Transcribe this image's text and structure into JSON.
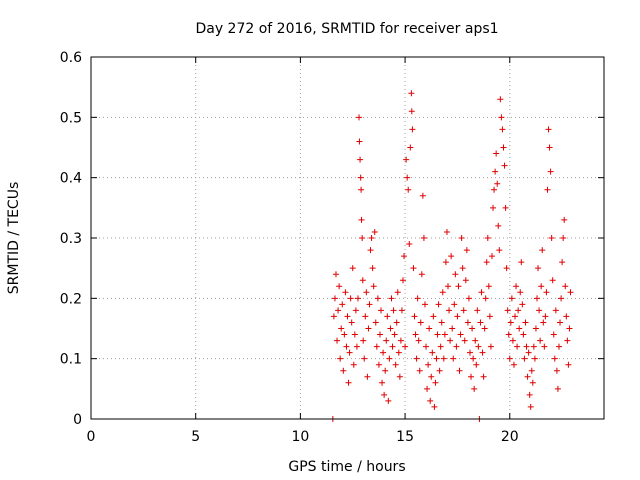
{
  "chart_data": {
    "type": "scatter",
    "title": "Day 272 of 2016, SRMTID for receiver aps1",
    "xlabel": "GPS time / hours",
    "ylabel": "SRMTID / TECUs",
    "xlim": [
      0,
      24.5
    ],
    "ylim": [
      0,
      0.6
    ],
    "x_ticks": [
      "0",
      "5",
      "10",
      "15",
      "20"
    ],
    "y_ticks": [
      "0",
      "0.1",
      "0.2",
      "0.3",
      "0.4",
      "0.5",
      "0.6"
    ],
    "grid": true,
    "marker": "plus",
    "color": "#e00000",
    "series": [
      {
        "points": [
          [
            11.55,
            0.0
          ],
          [
            11.6,
            0.17
          ],
          [
            11.65,
            0.2
          ],
          [
            11.7,
            0.24
          ],
          [
            11.75,
            0.13
          ],
          [
            11.8,
            0.18
          ],
          [
            11.85,
            0.22
          ],
          [
            11.9,
            0.1
          ],
          [
            11.95,
            0.15
          ],
          [
            12.0,
            0.19
          ],
          [
            12.05,
            0.08
          ],
          [
            12.1,
            0.14
          ],
          [
            12.15,
            0.21
          ],
          [
            12.2,
            0.12
          ],
          [
            12.25,
            0.17
          ],
          [
            12.3,
            0.06
          ],
          [
            12.35,
            0.11
          ],
          [
            12.4,
            0.2
          ],
          [
            12.45,
            0.16
          ],
          [
            12.5,
            0.25
          ],
          [
            12.55,
            0.09
          ],
          [
            12.6,
            0.14
          ],
          [
            12.65,
            0.18
          ],
          [
            12.7,
            0.12
          ],
          [
            12.75,
            0.2
          ],
          [
            12.8,
            0.5
          ],
          [
            12.82,
            0.46
          ],
          [
            12.85,
            0.43
          ],
          [
            12.88,
            0.4
          ],
          [
            12.9,
            0.38
          ],
          [
            12.92,
            0.33
          ],
          [
            12.95,
            0.3
          ],
          [
            12.98,
            0.23
          ],
          [
            13.0,
            0.13
          ],
          [
            13.05,
            0.1
          ],
          [
            13.1,
            0.17
          ],
          [
            13.15,
            0.21
          ],
          [
            13.2,
            0.07
          ],
          [
            13.25,
            0.15
          ],
          [
            13.3,
            0.19
          ],
          [
            13.35,
            0.28
          ],
          [
            13.4,
            0.3
          ],
          [
            13.45,
            0.25
          ],
          [
            13.5,
            0.22
          ],
          [
            13.55,
            0.31
          ],
          [
            13.6,
            0.16
          ],
          [
            13.65,
            0.12
          ],
          [
            13.7,
            0.2
          ],
          [
            13.75,
            0.09
          ],
          [
            13.8,
            0.14
          ],
          [
            13.85,
            0.18
          ],
          [
            13.9,
            0.06
          ],
          [
            13.95,
            0.11
          ],
          [
            14.0,
            0.04
          ],
          [
            14.05,
            0.08
          ],
          [
            14.1,
            0.13
          ],
          [
            14.15,
            0.17
          ],
          [
            14.2,
            0.03
          ],
          [
            14.25,
            0.1
          ],
          [
            14.3,
            0.15
          ],
          [
            14.35,
            0.2
          ],
          [
            14.4,
            0.12
          ],
          [
            14.45,
            0.18
          ],
          [
            14.5,
            0.14
          ],
          [
            14.55,
            0.09
          ],
          [
            14.6,
            0.16
          ],
          [
            14.65,
            0.21
          ],
          [
            14.7,
            0.11
          ],
          [
            14.75,
            0.07
          ],
          [
            14.8,
            0.13
          ],
          [
            14.85,
            0.18
          ],
          [
            14.9,
            0.23
          ],
          [
            14.95,
            0.27
          ],
          [
            15.0,
            0.12
          ],
          [
            15.05,
            0.43
          ],
          [
            15.1,
            0.4
          ],
          [
            15.15,
            0.38
          ],
          [
            15.2,
            0.29
          ],
          [
            15.25,
            0.45
          ],
          [
            15.3,
            0.54
          ],
          [
            15.32,
            0.51
          ],
          [
            15.35,
            0.48
          ],
          [
            15.4,
            0.25
          ],
          [
            15.45,
            0.17
          ],
          [
            15.5,
            0.14
          ],
          [
            15.55,
            0.1
          ],
          [
            15.6,
            0.2
          ],
          [
            15.65,
            0.13
          ],
          [
            15.7,
            0.08
          ],
          [
            15.75,
            0.16
          ],
          [
            15.8,
            0.24
          ],
          [
            15.85,
            0.37
          ],
          [
            15.9,
            0.3
          ],
          [
            15.95,
            0.19
          ],
          [
            16.0,
            0.12
          ],
          [
            16.05,
            0.05
          ],
          [
            16.1,
            0.09
          ],
          [
            16.15,
            0.15
          ],
          [
            16.2,
            0.03
          ],
          [
            16.25,
            0.07
          ],
          [
            16.3,
            0.11
          ],
          [
            16.35,
            0.17
          ],
          [
            16.4,
            0.02
          ],
          [
            16.45,
            0.06
          ],
          [
            16.5,
            0.1
          ],
          [
            16.55,
            0.14
          ],
          [
            16.6,
            0.19
          ],
          [
            16.65,
            0.08
          ],
          [
            16.7,
            0.12
          ],
          [
            16.75,
            0.16
          ],
          [
            16.8,
            0.21
          ],
          [
            16.85,
            0.1
          ],
          [
            16.9,
            0.14
          ],
          [
            16.95,
            0.26
          ],
          [
            17.0,
            0.31
          ],
          [
            17.05,
            0.22
          ],
          [
            17.1,
            0.18
          ],
          [
            17.15,
            0.13
          ],
          [
            17.2,
            0.27
          ],
          [
            17.25,
            0.15
          ],
          [
            17.3,
            0.1
          ],
          [
            17.35,
            0.19
          ],
          [
            17.4,
            0.24
          ],
          [
            17.45,
            0.12
          ],
          [
            17.5,
            0.17
          ],
          [
            17.55,
            0.22
          ],
          [
            17.6,
            0.08
          ],
          [
            17.65,
            0.14
          ],
          [
            17.7,
            0.3
          ],
          [
            17.75,
            0.25
          ],
          [
            17.8,
            0.18
          ],
          [
            17.85,
            0.13
          ],
          [
            17.9,
            0.23
          ],
          [
            17.95,
            0.28
          ],
          [
            18.0,
            0.16
          ],
          [
            18.05,
            0.2
          ],
          [
            18.1,
            0.11
          ],
          [
            18.15,
            0.07
          ],
          [
            18.2,
            0.15
          ],
          [
            18.25,
            0.1
          ],
          [
            18.3,
            0.05
          ],
          [
            18.35,
            0.13
          ],
          [
            18.4,
            0.09
          ],
          [
            18.45,
            0.18
          ],
          [
            18.5,
            0.12
          ],
          [
            18.55,
            0.0
          ],
          [
            18.6,
            0.16
          ],
          [
            18.65,
            0.21
          ],
          [
            18.7,
            0.11
          ],
          [
            18.75,
            0.07
          ],
          [
            18.8,
            0.15
          ],
          [
            18.85,
            0.2
          ],
          [
            18.9,
            0.26
          ],
          [
            18.95,
            0.3
          ],
          [
            19.0,
            0.22
          ],
          [
            19.05,
            0.17
          ],
          [
            19.1,
            0.12
          ],
          [
            19.15,
            0.27
          ],
          [
            19.2,
            0.35
          ],
          [
            19.25,
            0.38
          ],
          [
            19.3,
            0.41
          ],
          [
            19.35,
            0.44
          ],
          [
            19.4,
            0.39
          ],
          [
            19.45,
            0.32
          ],
          [
            19.5,
            0.28
          ],
          [
            19.55,
            0.53
          ],
          [
            19.6,
            0.5
          ],
          [
            19.65,
            0.48
          ],
          [
            19.7,
            0.45
          ],
          [
            19.75,
            0.42
          ],
          [
            19.8,
            0.35
          ],
          [
            19.85,
            0.25
          ],
          [
            19.9,
            0.18
          ],
          [
            19.95,
            0.14
          ],
          [
            20.0,
            0.1
          ],
          [
            20.05,
            0.16
          ],
          [
            20.1,
            0.2
          ],
          [
            20.15,
            0.13
          ],
          [
            20.2,
            0.09
          ],
          [
            20.25,
            0.17
          ],
          [
            20.3,
            0.22
          ],
          [
            20.35,
            0.12
          ],
          [
            20.4,
            0.18
          ],
          [
            20.45,
            0.15
          ],
          [
            20.5,
            0.21
          ],
          [
            20.55,
            0.26
          ],
          [
            20.6,
            0.19
          ],
          [
            20.65,
            0.14
          ],
          [
            20.7,
            0.1
          ],
          [
            20.75,
            0.16
          ],
          [
            20.8,
            0.12
          ],
          [
            20.85,
            0.07
          ],
          [
            20.9,
            0.11
          ],
          [
            20.95,
            0.04
          ],
          [
            21.0,
            0.02
          ],
          [
            21.05,
            0.08
          ],
          [
            21.1,
            0.06
          ],
          [
            21.15,
            0.12
          ],
          [
            21.2,
            0.1
          ],
          [
            21.25,
            0.15
          ],
          [
            21.3,
            0.2
          ],
          [
            21.35,
            0.25
          ],
          [
            21.4,
            0.18
          ],
          [
            21.45,
            0.13
          ],
          [
            21.5,
            0.22
          ],
          [
            21.55,
            0.28
          ],
          [
            21.6,
            0.16
          ],
          [
            21.65,
            0.12
          ],
          [
            21.7,
            0.17
          ],
          [
            21.75,
            0.21
          ],
          [
            21.8,
            0.38
          ],
          [
            21.85,
            0.48
          ],
          [
            21.9,
            0.45
          ],
          [
            21.95,
            0.41
          ],
          [
            22.0,
            0.3
          ],
          [
            22.05,
            0.23
          ],
          [
            22.1,
            0.14
          ],
          [
            22.15,
            0.1
          ],
          [
            22.2,
            0.18
          ],
          [
            22.25,
            0.08
          ],
          [
            22.3,
            0.05
          ],
          [
            22.35,
            0.12
          ],
          [
            22.4,
            0.16
          ],
          [
            22.45,
            0.2
          ],
          [
            22.5,
            0.26
          ],
          [
            22.55,
            0.3
          ],
          [
            22.6,
            0.33
          ],
          [
            22.65,
            0.22
          ],
          [
            22.7,
            0.17
          ],
          [
            22.75,
            0.13
          ],
          [
            22.8,
            0.09
          ],
          [
            22.85,
            0.15
          ],
          [
            22.9,
            0.21
          ]
        ]
      }
    ]
  }
}
